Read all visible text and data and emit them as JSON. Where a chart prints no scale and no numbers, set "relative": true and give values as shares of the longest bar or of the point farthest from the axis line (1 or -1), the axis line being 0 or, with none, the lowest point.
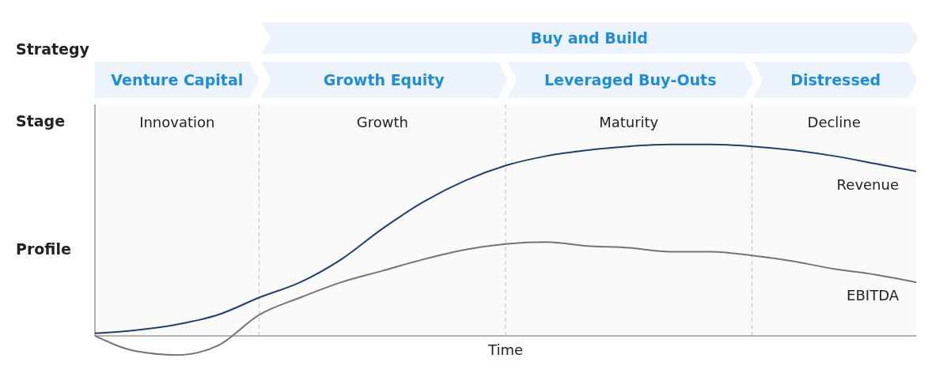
{
  "chart_data": {
    "type": "line",
    "relative": true,
    "ylabel": "Profile",
    "xlabel": "Time",
    "categories": [
      null,
      null,
      null,
      null,
      null,
      null,
      null,
      null,
      null,
      null,
      null,
      null,
      null,
      null,
      null,
      null,
      null,
      null,
      null,
      null,
      null
    ],
    "series": [
      {
        "name": "Revenue",
        "color": "#1f3f6e",
        "values": [
          0.013,
          0.03,
          0.06,
          0.11,
          0.2,
          0.28,
          0.4,
          0.56,
          0.7,
          0.81,
          0.89,
          0.94,
          0.97,
          0.99,
          1.0,
          1.0,
          0.99,
          0.97,
          0.94,
          0.9,
          0.86
        ]
      },
      {
        "name": "EBITDA",
        "color": "#737373",
        "values": [
          0,
          -0.08,
          -0.1,
          -0.05,
          0.11,
          0.2,
          0.28,
          0.34,
          0.4,
          0.45,
          0.48,
          0.49,
          0.47,
          0.46,
          0.44,
          0.44,
          0.42,
          0.39,
          0.35,
          0.32,
          0.28
        ]
      }
    ],
    "annotations": [
      "Strategy",
      "Stage",
      "Buy and Build",
      "Venture Capital",
      "Growth Equity",
      "Leveraged Buy-Outs",
      "Distressed",
      "Innovation",
      "Growth",
      "Maturity",
      "Decline"
    ],
    "grid": "x",
    "marker": "none",
    "line_style": "solid"
  }
}
